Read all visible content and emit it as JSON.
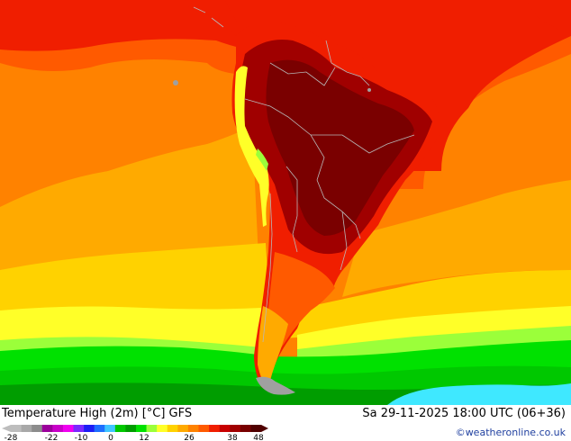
{
  "map": {
    "title": "Temperature High (2m) [°C] GFS",
    "valid_time": "Sa 29-11-2025 18:00 UTC (06+36)",
    "credit": "©weatheronline.co.uk",
    "region": "South America",
    "variable": "Temperature High (2m)",
    "unit": "°C",
    "model": "GFS"
  },
  "legend": {
    "tick_labels": [
      "-28",
      "-22",
      "-10",
      "0",
      "12",
      "26",
      "38",
      "48"
    ],
    "bins": [
      {
        "color": "#bdbdbd"
      },
      {
        "color": "#a8a8a8"
      },
      {
        "color": "#8c8c8c"
      },
      {
        "color": "#9b009b"
      },
      {
        "color": "#c800c8"
      },
      {
        "color": "#f000f0"
      },
      {
        "color": "#7a28ff"
      },
      {
        "color": "#1d1df5"
      },
      {
        "color": "#1e6eff"
      },
      {
        "color": "#3fc5ff"
      },
      {
        "color": "#00c800"
      },
      {
        "color": "#009d00"
      },
      {
        "color": "#00e100"
      },
      {
        "color": "#9bff3a"
      },
      {
        "color": "#ffff28"
      },
      {
        "color": "#ffd200"
      },
      {
        "color": "#ffaa00"
      },
      {
        "color": "#ff8200"
      },
      {
        "color": "#ff5a00"
      },
      {
        "color": "#f01e00"
      },
      {
        "color": "#c80000"
      },
      {
        "color": "#a00000"
      },
      {
        "color": "#780000"
      },
      {
        "color": "#500000"
      }
    ]
  },
  "palette": {
    "very_hot": "#7a0000",
    "hot": "#a00000",
    "warm_red": "#f01e00",
    "orange_red": "#ff5a00",
    "orange": "#ff8200",
    "light_orange": "#ffaa00",
    "gold": "#ffd200",
    "yellow": "#ffff28",
    "yellow_green": "#9bff3a",
    "green": "#00e100",
    "mid_green": "#00c800",
    "dark_green": "#009d00",
    "cyan": "#3fe8ff",
    "grey": "#a0a0a0",
    "border": "#b8b8b8"
  }
}
